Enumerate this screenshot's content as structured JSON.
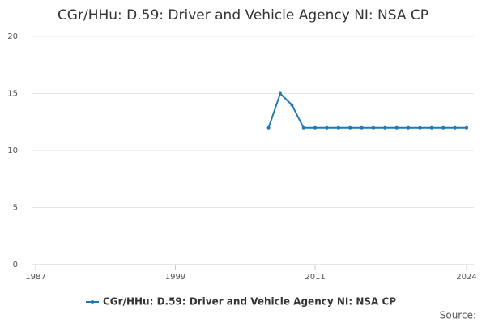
{
  "chart_data": {
    "type": "line",
    "title": "CGr/HHu: D.59: Driver and Vehicle Agency NI: NSA CP",
    "x": [
      2007,
      2008,
      2009,
      2010,
      2011,
      2012,
      2013,
      2014,
      2015,
      2016,
      2017,
      2018,
      2019,
      2020,
      2021,
      2022,
      2023,
      2024
    ],
    "series": [
      {
        "name": "CGr/HHu: D.59: Driver and Vehicle Agency NI: NSA CP",
        "color": "#1f7ab3",
        "values": [
          12,
          15,
          14,
          12,
          12,
          12,
          12,
          12,
          12,
          12,
          12,
          12,
          12,
          12,
          12,
          12,
          12,
          12
        ]
      }
    ],
    "xlim": [
      1987,
      2024
    ],
    "xticks": [
      1987,
      1999,
      2011,
      2024
    ],
    "ylim": [
      0,
      20
    ],
    "yticks": [
      0,
      5,
      10,
      15,
      20
    ],
    "grid": true,
    "source": "Source:"
  }
}
